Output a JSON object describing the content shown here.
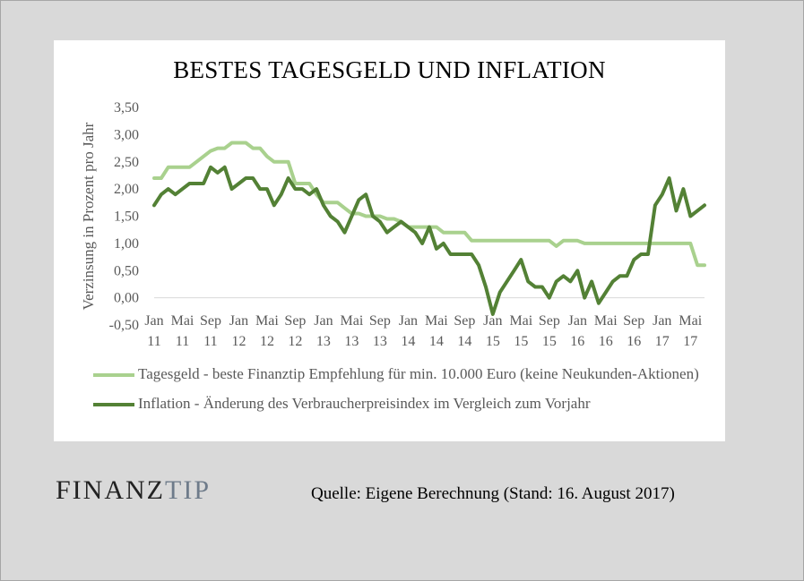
{
  "page": {
    "logo": {
      "part1": "FINANZ",
      "part2": "TIP"
    },
    "source": "Quelle:  Eigene Berechnung (Stand: 16. August 2017)"
  },
  "chart_data": {
    "type": "line",
    "title": "BESTES TAGESGELD UND INFLATION",
    "xlabel": "",
    "ylabel": "Verzinsung in Prozent pro Jahr",
    "ylim": [
      -0.5,
      3.5
    ],
    "yticks": [
      "3,50",
      "3,00",
      "2,50",
      "2,00",
      "1,50",
      "1,00",
      "0,50",
      "0,00",
      "-0,50"
    ],
    "x_start": "2011-01",
    "x_end": "2017-08",
    "xtick_labels": [
      {
        "month": "Jan",
        "year": "11"
      },
      {
        "month": "Mai",
        "year": "11"
      },
      {
        "month": "Sep",
        "year": "11"
      },
      {
        "month": "Jan",
        "year": "12"
      },
      {
        "month": "Mai",
        "year": "12"
      },
      {
        "month": "Sep",
        "year": "12"
      },
      {
        "month": "Jan",
        "year": "13"
      },
      {
        "month": "Mai",
        "year": "13"
      },
      {
        "month": "Sep",
        "year": "13"
      },
      {
        "month": "Jan",
        "year": "14"
      },
      {
        "month": "Mai",
        "year": "14"
      },
      {
        "month": "Sep",
        "year": "14"
      },
      {
        "month": "Jan",
        "year": "15"
      },
      {
        "month": "Mai",
        "year": "15"
      },
      {
        "month": "Sep",
        "year": "15"
      },
      {
        "month": "Jan",
        "year": "16"
      },
      {
        "month": "Mai",
        "year": "16"
      },
      {
        "month": "Sep",
        "year": "16"
      },
      {
        "month": "Jan",
        "year": "17"
      },
      {
        "month": "Mai",
        "year": "17"
      }
    ],
    "grid": false,
    "legend_position": "bottom",
    "series": [
      {
        "name": "Tagesgeld - beste Finanztip Empfehlung für min. 10.000 Euro (keine Neukunden-Aktionen)",
        "color": "#a9d18e",
        "values": [
          2.2,
          2.2,
          2.4,
          2.4,
          2.4,
          2.4,
          2.5,
          2.6,
          2.7,
          2.75,
          2.75,
          2.85,
          2.85,
          2.85,
          2.75,
          2.75,
          2.6,
          2.5,
          2.5,
          2.5,
          2.1,
          2.1,
          2.1,
          1.9,
          1.75,
          1.75,
          1.75,
          1.65,
          1.55,
          1.55,
          1.5,
          1.5,
          1.5,
          1.45,
          1.45,
          1.4,
          1.3,
          1.3,
          1.3,
          1.3,
          1.3,
          1.2,
          1.2,
          1.2,
          1.2,
          1.05,
          1.05,
          1.05,
          1.05,
          1.05,
          1.05,
          1.05,
          1.05,
          1.05,
          1.05,
          1.05,
          1.05,
          0.95,
          1.05,
          1.05,
          1.05,
          1.0,
          1.0,
          1.0,
          1.0,
          1.0,
          1.0,
          1.0,
          1.0,
          1.0,
          1.0,
          1.0,
          1.0,
          1.0,
          1.0,
          1.0,
          1.0,
          0.6,
          0.6
        ]
      },
      {
        "name": "Inflation - Änderung des Verbraucherpreisindex im Vergleich zum Vorjahr",
        "color": "#538135",
        "values": [
          1.7,
          1.9,
          2.0,
          1.9,
          2.0,
          2.1,
          2.1,
          2.1,
          2.4,
          2.3,
          2.4,
          2.0,
          2.1,
          2.2,
          2.2,
          2.0,
          2.0,
          1.7,
          1.9,
          2.2,
          2.0,
          2.0,
          1.9,
          2.0,
          1.7,
          1.5,
          1.4,
          1.2,
          1.5,
          1.8,
          1.9,
          1.5,
          1.4,
          1.2,
          1.3,
          1.4,
          1.3,
          1.2,
          1.0,
          1.3,
          0.9,
          1.0,
          0.8,
          0.8,
          0.8,
          0.8,
          0.6,
          0.2,
          -0.3,
          0.1,
          0.3,
          0.5,
          0.7,
          0.3,
          0.2,
          0.2,
          0.0,
          0.3,
          0.4,
          0.3,
          0.5,
          0.0,
          0.3,
          -0.1,
          0.1,
          0.3,
          0.4,
          0.4,
          0.7,
          0.8,
          0.8,
          1.7,
          1.9,
          2.2,
          1.6,
          2.0,
          1.5,
          1.6,
          1.7
        ]
      }
    ]
  }
}
